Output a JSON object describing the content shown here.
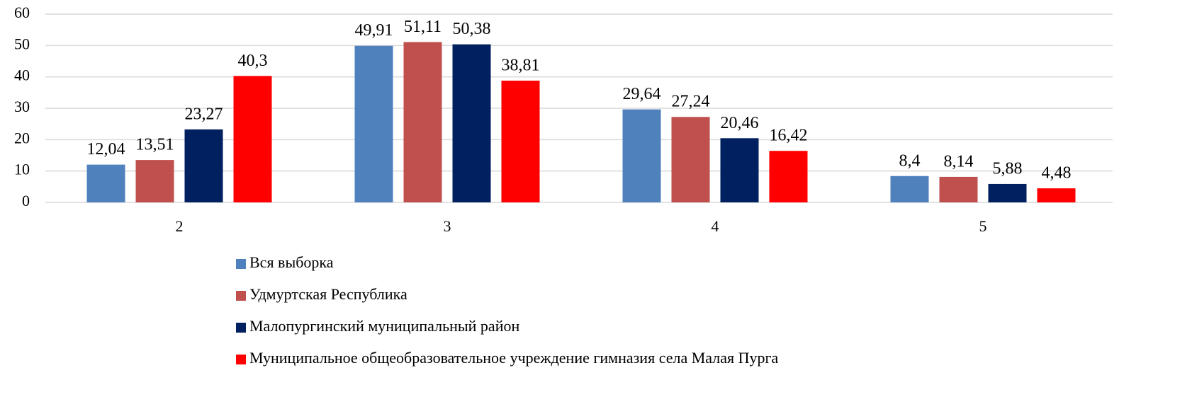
{
  "chart_data": {
    "type": "bar",
    "categories": [
      "2",
      "3",
      "4",
      "5"
    ],
    "series": [
      {
        "name": "Вся выборка",
        "color": "#4f81bd",
        "values": [
          12.04,
          49.91,
          29.64,
          8.4
        ],
        "value_labels": [
          "12,04",
          "49,91",
          "29,64",
          "8,4"
        ]
      },
      {
        "name": "Удмуртская Республика",
        "color": "#c0504d",
        "values": [
          13.51,
          51.11,
          27.24,
          8.14
        ],
        "value_labels": [
          "13,51",
          "51,11",
          "27,24",
          "8,14"
        ]
      },
      {
        "name": "Малопургинский муниципальный район",
        "color": "#002060",
        "values": [
          23.27,
          50.38,
          20.46,
          5.88
        ],
        "value_labels": [
          "23,27",
          "50,38",
          "20,46",
          "5,88"
        ]
      },
      {
        "name": "Муниципальное общеобразовательное учреждение гимназия села Малая Пурга",
        "color": "#ff0000",
        "values": [
          40.3,
          38.81,
          16.42,
          4.48
        ],
        "value_labels": [
          "40,3",
          "38,81",
          "16,42",
          "4,48"
        ]
      }
    ],
    "ylim": [
      0,
      60
    ],
    "yticks": [
      0,
      10,
      20,
      30,
      40,
      50,
      60
    ],
    "grid": true,
    "legend": "bottom"
  }
}
